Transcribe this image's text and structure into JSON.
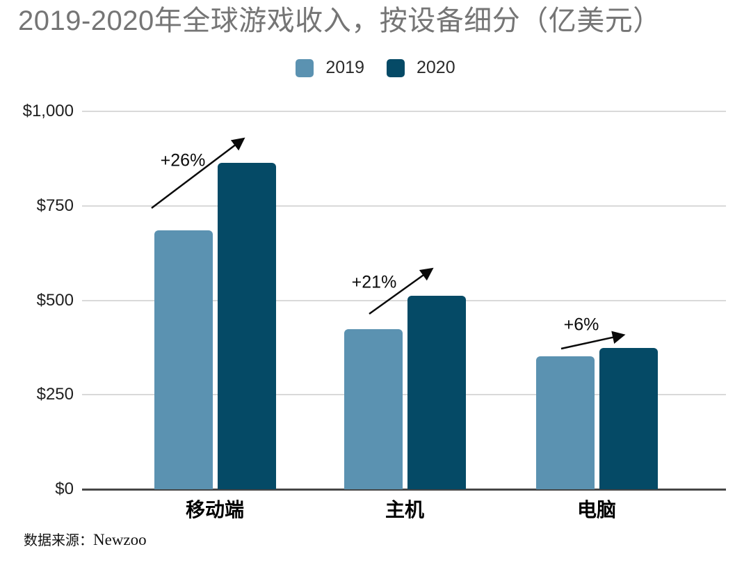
{
  "title": "2019-2020年全球游戏收入，按设备细分（亿美元）",
  "source": {
    "label": "数据来源：",
    "name": "Newzoo"
  },
  "colors": {
    "series_2019": "#5B92B1",
    "series_2020": "#054A66",
    "title_text": "#757575",
    "gridline": "#D9D9D9",
    "axis_line": "#474747",
    "annotation_text": "#0A0A0A"
  },
  "chart_data": {
    "type": "bar",
    "title": "2019-2020年全球游戏收入，按设备细分（亿美元）",
    "categories": [
      "移动端",
      "主机",
      "电脑"
    ],
    "series": [
      {
        "name": "2019",
        "color": "#5B92B1",
        "values": [
          685,
          423,
          352
        ]
      },
      {
        "name": "2020",
        "color": "#054A66",
        "values": [
          863,
          512,
          374
        ]
      }
    ],
    "xlabel": "",
    "ylabel": "",
    "ylim": [
      0,
      1000
    ],
    "yticks": [
      {
        "value": 0,
        "label": "$0"
      },
      {
        "value": 250,
        "label": "$250"
      },
      {
        "value": 500,
        "label": "$500"
      },
      {
        "value": 750,
        "label": "$750"
      },
      {
        "value": 1000,
        "label": "$1,000"
      }
    ],
    "grid": true,
    "legend_position": "top",
    "annotations": [
      {
        "label": "+26%",
        "category": "移动端"
      },
      {
        "label": "+21%",
        "category": "主机"
      },
      {
        "label": "+6%",
        "category": "电脑"
      }
    ]
  }
}
